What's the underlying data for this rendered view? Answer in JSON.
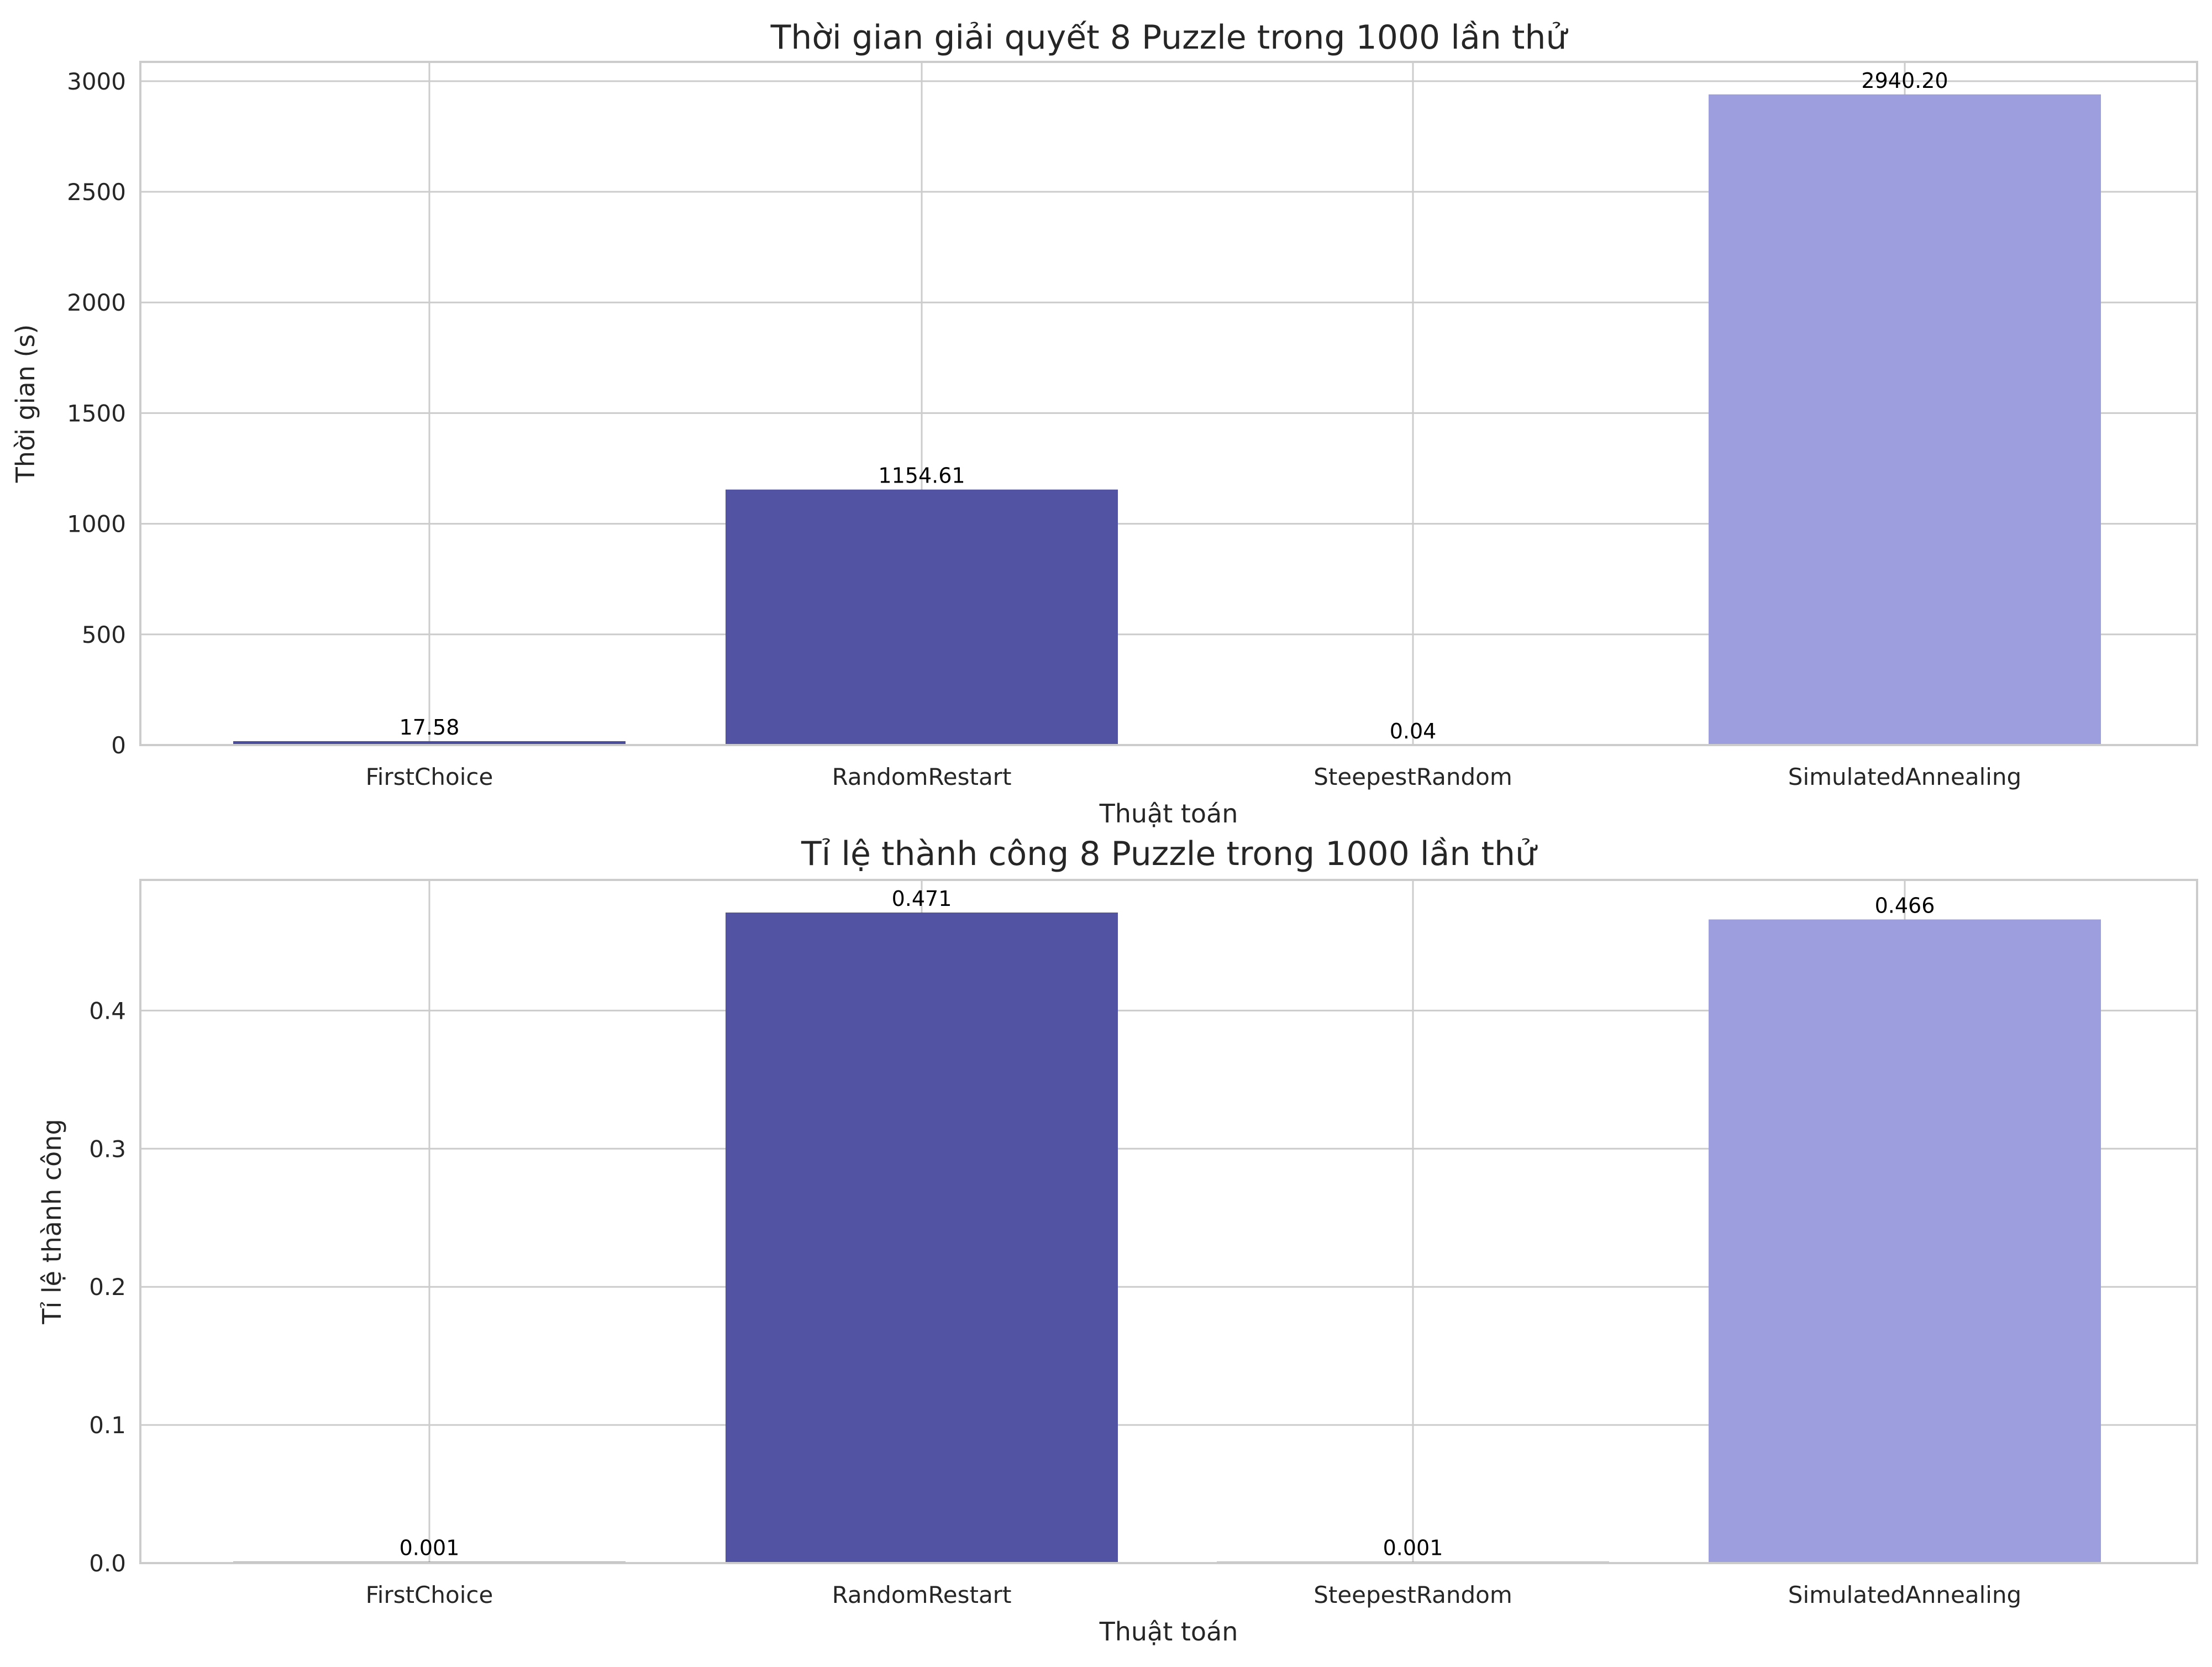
{
  "chart_data": [
    {
      "type": "bar",
      "title": "Thời gian giải quyết 8 Puzzle trong 1000 lần thử",
      "xlabel": "Thuật toán",
      "ylabel": "Thời gian (s)",
      "categories": [
        "FirstChoice",
        "RandomRestart",
        "SteepestRandom",
        "SimulatedAnnealing"
      ],
      "values": [
        17.58,
        1154.61,
        0.04,
        2940.2
      ],
      "data_labels": [
        "17.58",
        "1154.61",
        "0.04",
        "2940.20"
      ],
      "colors": [
        "#4a4c9c",
        "#5254a3",
        "#6b6ecf",
        "#9c9ede"
      ],
      "ylim": [
        0,
        3087
      ],
      "yticks": [
        0,
        500,
        1000,
        1500,
        2000,
        2500,
        3000
      ],
      "ytick_labels": [
        "0",
        "500",
        "1000",
        "1500",
        "2000",
        "2500",
        "3000"
      ],
      "grid": true,
      "legend": "none"
    },
    {
      "type": "bar",
      "title": "Tỉ lệ thành công 8 Puzzle trong 1000 lần thử",
      "xlabel": "Thuật toán",
      "ylabel": "Tỉ lệ thành công",
      "categories": [
        "FirstChoice",
        "RandomRestart",
        "SteepestRandom",
        "SimulatedAnnealing"
      ],
      "values": [
        0.001,
        0.471,
        0.001,
        0.466
      ],
      "data_labels": [
        "0.001",
        "0.471",
        "0.001",
        "0.466"
      ],
      "colors": [
        "#4a4c9c",
        "#5254a3",
        "#6b6ecf",
        "#9c9ede"
      ],
      "ylim": [
        0,
        0.4946
      ],
      "yticks": [
        0,
        0.1,
        0.2,
        0.3,
        0.4
      ],
      "ytick_labels": [
        "0.0",
        "0.1",
        "0.2",
        "0.3",
        "0.4"
      ],
      "grid": true,
      "legend": "none"
    }
  ]
}
